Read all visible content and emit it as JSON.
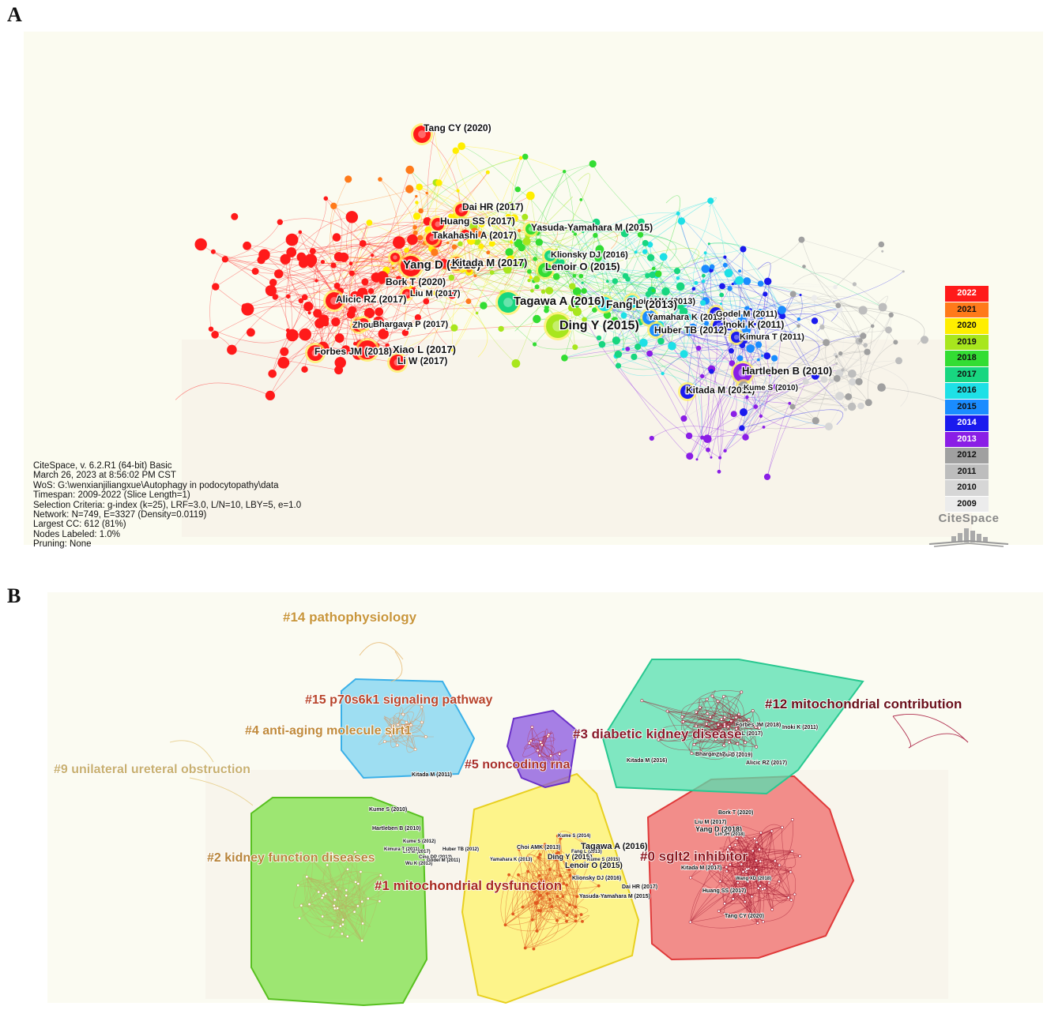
{
  "panels": {
    "a": "A",
    "b": "B"
  },
  "info": [
    "CiteSpace, v. 6.2.R1 (64-bit) Basic",
    "March 26, 2023 at 8:56:02 PM CST",
    "WoS: G:\\wenxianjiliangxue\\Autophagy in podocytopathy\\data",
    "Timespan: 2009-2022 (Slice Length=1)",
    "Selection Criteria: g-index (k=25), LRF=3.0, L/N=10, LBY=5, e=1.0",
    "Network: N=749, E=3327 (Density=0.0119)",
    "Largest CC: 612 (81%)",
    "Nodes Labeled: 1.0%",
    "Pruning: None"
  ],
  "legend": [
    {
      "year": "2022",
      "color": "#ff1a1a",
      "text": "#ffffff"
    },
    {
      "year": "2021",
      "color": "#ff7a1a",
      "text": "#111111"
    },
    {
      "year": "2020",
      "color": "#ffee00",
      "text": "#111111"
    },
    {
      "year": "2019",
      "color": "#a8e61d",
      "text": "#111111"
    },
    {
      "year": "2018",
      "color": "#33dd33",
      "text": "#111111"
    },
    {
      "year": "2017",
      "color": "#18d680",
      "text": "#111111"
    },
    {
      "year": "2016",
      "color": "#1ee0e6",
      "text": "#111111"
    },
    {
      "year": "2015",
      "color": "#1a8cff",
      "text": "#111111"
    },
    {
      "year": "2014",
      "color": "#1a1aee",
      "text": "#ffffff"
    },
    {
      "year": "2013",
      "color": "#8a1ee6",
      "text": "#ffffff"
    },
    {
      "year": "2012",
      "color": "#a0a0a0",
      "text": "#111111"
    },
    {
      "year": "2011",
      "color": "#bdbdbd",
      "text": "#111111"
    },
    {
      "year": "2010",
      "color": "#d6d6d6",
      "text": "#111111"
    },
    {
      "year": "2009",
      "color": "#ececec",
      "text": "#111111"
    }
  ],
  "logo_text": "CiteSpace",
  "nodes_a": [
    {
      "label": "Tang CY (2020)",
      "year": "2022"
    },
    {
      "label": "Dai HR (2017)",
      "year": "2022"
    },
    {
      "label": "Huang SS (2017)",
      "year": "2022"
    },
    {
      "label": "Takahashi A (2017)",
      "year": "2022"
    },
    {
      "label": "Yasuda-Yamahara M (2015)",
      "year": "2018"
    },
    {
      "label": "Klionsky DJ (2016)",
      "year": "2017"
    },
    {
      "label": "Lenoir O (2015)",
      "year": "2018"
    },
    {
      "label": "Yang D (2018)",
      "year": "2022"
    },
    {
      "label": "Kitada M (2017)",
      "year": "2021"
    },
    {
      "label": "Bork T (2020)",
      "year": "2022"
    },
    {
      "label": "Liu M (2017)",
      "year": "2022"
    },
    {
      "label": "Alicic RZ (2017)",
      "year": "2022"
    },
    {
      "label": "Tagawa A (2016)",
      "year": "2017"
    },
    {
      "label": "Choi AMK (2013)",
      "year": "2016"
    },
    {
      "label": "Fang L (2013)",
      "year": "2016"
    },
    {
      "label": "Ding Y (2015)",
      "year": "2019"
    },
    {
      "label": "Yamahara K (2013)",
      "year": "2015"
    },
    {
      "label": "Godel M (2011)",
      "year": "2014"
    },
    {
      "label": "Inoki K (2011)",
      "year": "2014"
    },
    {
      "label": "Huber TB (2012)",
      "year": "2015"
    },
    {
      "label": "Kimura T (2011)",
      "year": "2014"
    },
    {
      "label": "Zhou D (2019)",
      "year": "2022"
    },
    {
      "label": "Bhargava P (2017)",
      "year": "2022"
    },
    {
      "label": "Forbes JM (2018)",
      "year": "2022"
    },
    {
      "label": "Xiao L (2017)",
      "year": "2022"
    },
    {
      "label": "Li W (2017)",
      "year": "2022"
    },
    {
      "label": "Hartleben B (2010)",
      "year": "2013"
    },
    {
      "label": "Kitada M (2011)",
      "year": "2014"
    },
    {
      "label": "Kume S (2010)",
      "year": "2012"
    }
  ],
  "clusters": [
    {
      "label": "#14 pathophysiology",
      "color": "#c8963a"
    },
    {
      "label": "#15 p70s6k1 signaling pathway",
      "color": "#b8442a"
    },
    {
      "label": "#4 anti-aging molecule sirt1",
      "color": "#c08a3a"
    },
    {
      "label": "#9 unilateral ureteral obstruction",
      "color": "#c8b070"
    },
    {
      "label": "#5 noncoding rna",
      "color": "#a8302a"
    },
    {
      "label": "#3 diabetic kidney disease",
      "color": "#8a1a2a"
    },
    {
      "label": "#12 mitochondrial contribution",
      "color": "#6a0f1a"
    },
    {
      "label": "#2 kidney function diseases",
      "color": "#b8843a"
    },
    {
      "label": "#1 mitochondrial dysfunction",
      "color": "#a82a20"
    },
    {
      "label": "#0 sglt2 inhibitor",
      "color": "#8a1820"
    }
  ],
  "labels_b": [
    "Kitada M (2011)",
    "Forbes JM (2018)",
    "Inoki K (2011)",
    "Xiao L (2017)",
    "Kitada M (2016)",
    "Bhargava P (2017)",
    "Zhou D (2019)",
    "Alicic RZ (2017)",
    "Kume S (2010)",
    "Hartleben B (2010)",
    "Kume S (2012)",
    "Liu M (2017)",
    "Kimura T (2011)",
    "Huber TB (2012)",
    "Cina DP (2012)",
    "Wu K (2013)",
    "Godel M (2011)",
    "Kume S (2014)",
    "Choi AMK (2013)",
    "Yamahara K (2013)",
    "Ding Y (2015)",
    "Fang L (2013)",
    "Tagawa A (2016)",
    "Lenoir O (2015)",
    "Kume S (2015)",
    "Klionsky DJ (2016)",
    "Dai HR (2017)",
    "Yasuda-Yamahara M (2015)",
    "Bork T (2020)",
    "Liu M (2017)",
    "Yang D (2018)",
    "Lin JH (2018)",
    "Kitada M (2017)",
    "Wang XD (2018)",
    "Huang SS (2017)",
    "Tang CY (2020)"
  ]
}
